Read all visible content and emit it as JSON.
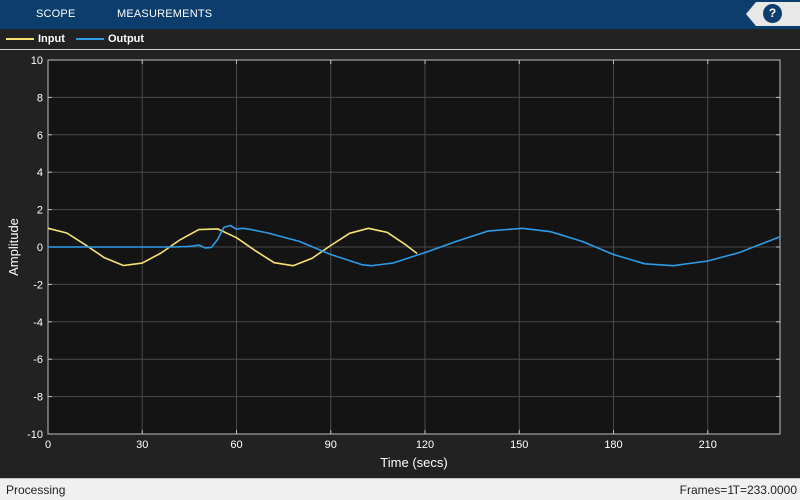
{
  "toolstrip": {
    "tabs": [
      "SCOPE",
      "MEASUREMENTS"
    ],
    "help_label": "?"
  },
  "legend": {
    "items": [
      {
        "label": "Input",
        "color": "#f7e371"
      },
      {
        "label": "Output",
        "color": "#2e9be8"
      }
    ]
  },
  "status": {
    "text": "Processing",
    "frames": "Frames=1",
    "time": "T=233.0000"
  },
  "chart_data": {
    "type": "line",
    "xlabel": "Time (secs)",
    "ylabel": "Amplitude",
    "xlim": [
      0,
      233
    ],
    "ylim": [
      -10,
      10
    ],
    "xticks": [
      0,
      30,
      60,
      90,
      120,
      150,
      180,
      210
    ],
    "yticks": [
      -10,
      -8,
      -6,
      -4,
      -2,
      0,
      2,
      4,
      6,
      8,
      10
    ],
    "grid": true,
    "background": "#141414",
    "series": [
      {
        "name": "Input",
        "color": "#f7e371",
        "x": [
          0,
          6,
          12,
          18,
          24,
          30,
          36,
          42,
          48,
          54,
          60,
          66,
          72,
          78,
          84,
          90,
          96,
          102,
          108,
          114,
          117.5
        ],
        "y": [
          1.0,
          0.75,
          0.1,
          -0.58,
          -0.99,
          -0.86,
          -0.32,
          0.38,
          0.93,
          0.97,
          0.5,
          -0.2,
          -0.84,
          -1.0,
          -0.61,
          0.08,
          0.73,
          1.0,
          0.78,
          0.1,
          -0.35
        ]
      },
      {
        "name": "Output",
        "color": "#2e9be8",
        "x": [
          0,
          10,
          20,
          30,
          40,
          44,
          46,
          48,
          50,
          52,
          54,
          56,
          58,
          60,
          62,
          64,
          70,
          80,
          90,
          100,
          103,
          110,
          120,
          130,
          140,
          151,
          160,
          170,
          180,
          190,
          199,
          210,
          220,
          233
        ],
        "y": [
          0,
          0,
          0,
          0,
          0,
          0.02,
          0.05,
          0.1,
          -0.05,
          -0.02,
          0.4,
          1.05,
          1.15,
          0.95,
          1.0,
          0.95,
          0.75,
          0.3,
          -0.4,
          -0.95,
          -1.0,
          -0.85,
          -0.3,
          0.3,
          0.85,
          1.0,
          0.82,
          0.3,
          -0.4,
          -0.9,
          -1.0,
          -0.75,
          -0.3,
          0.55
        ]
      }
    ]
  }
}
